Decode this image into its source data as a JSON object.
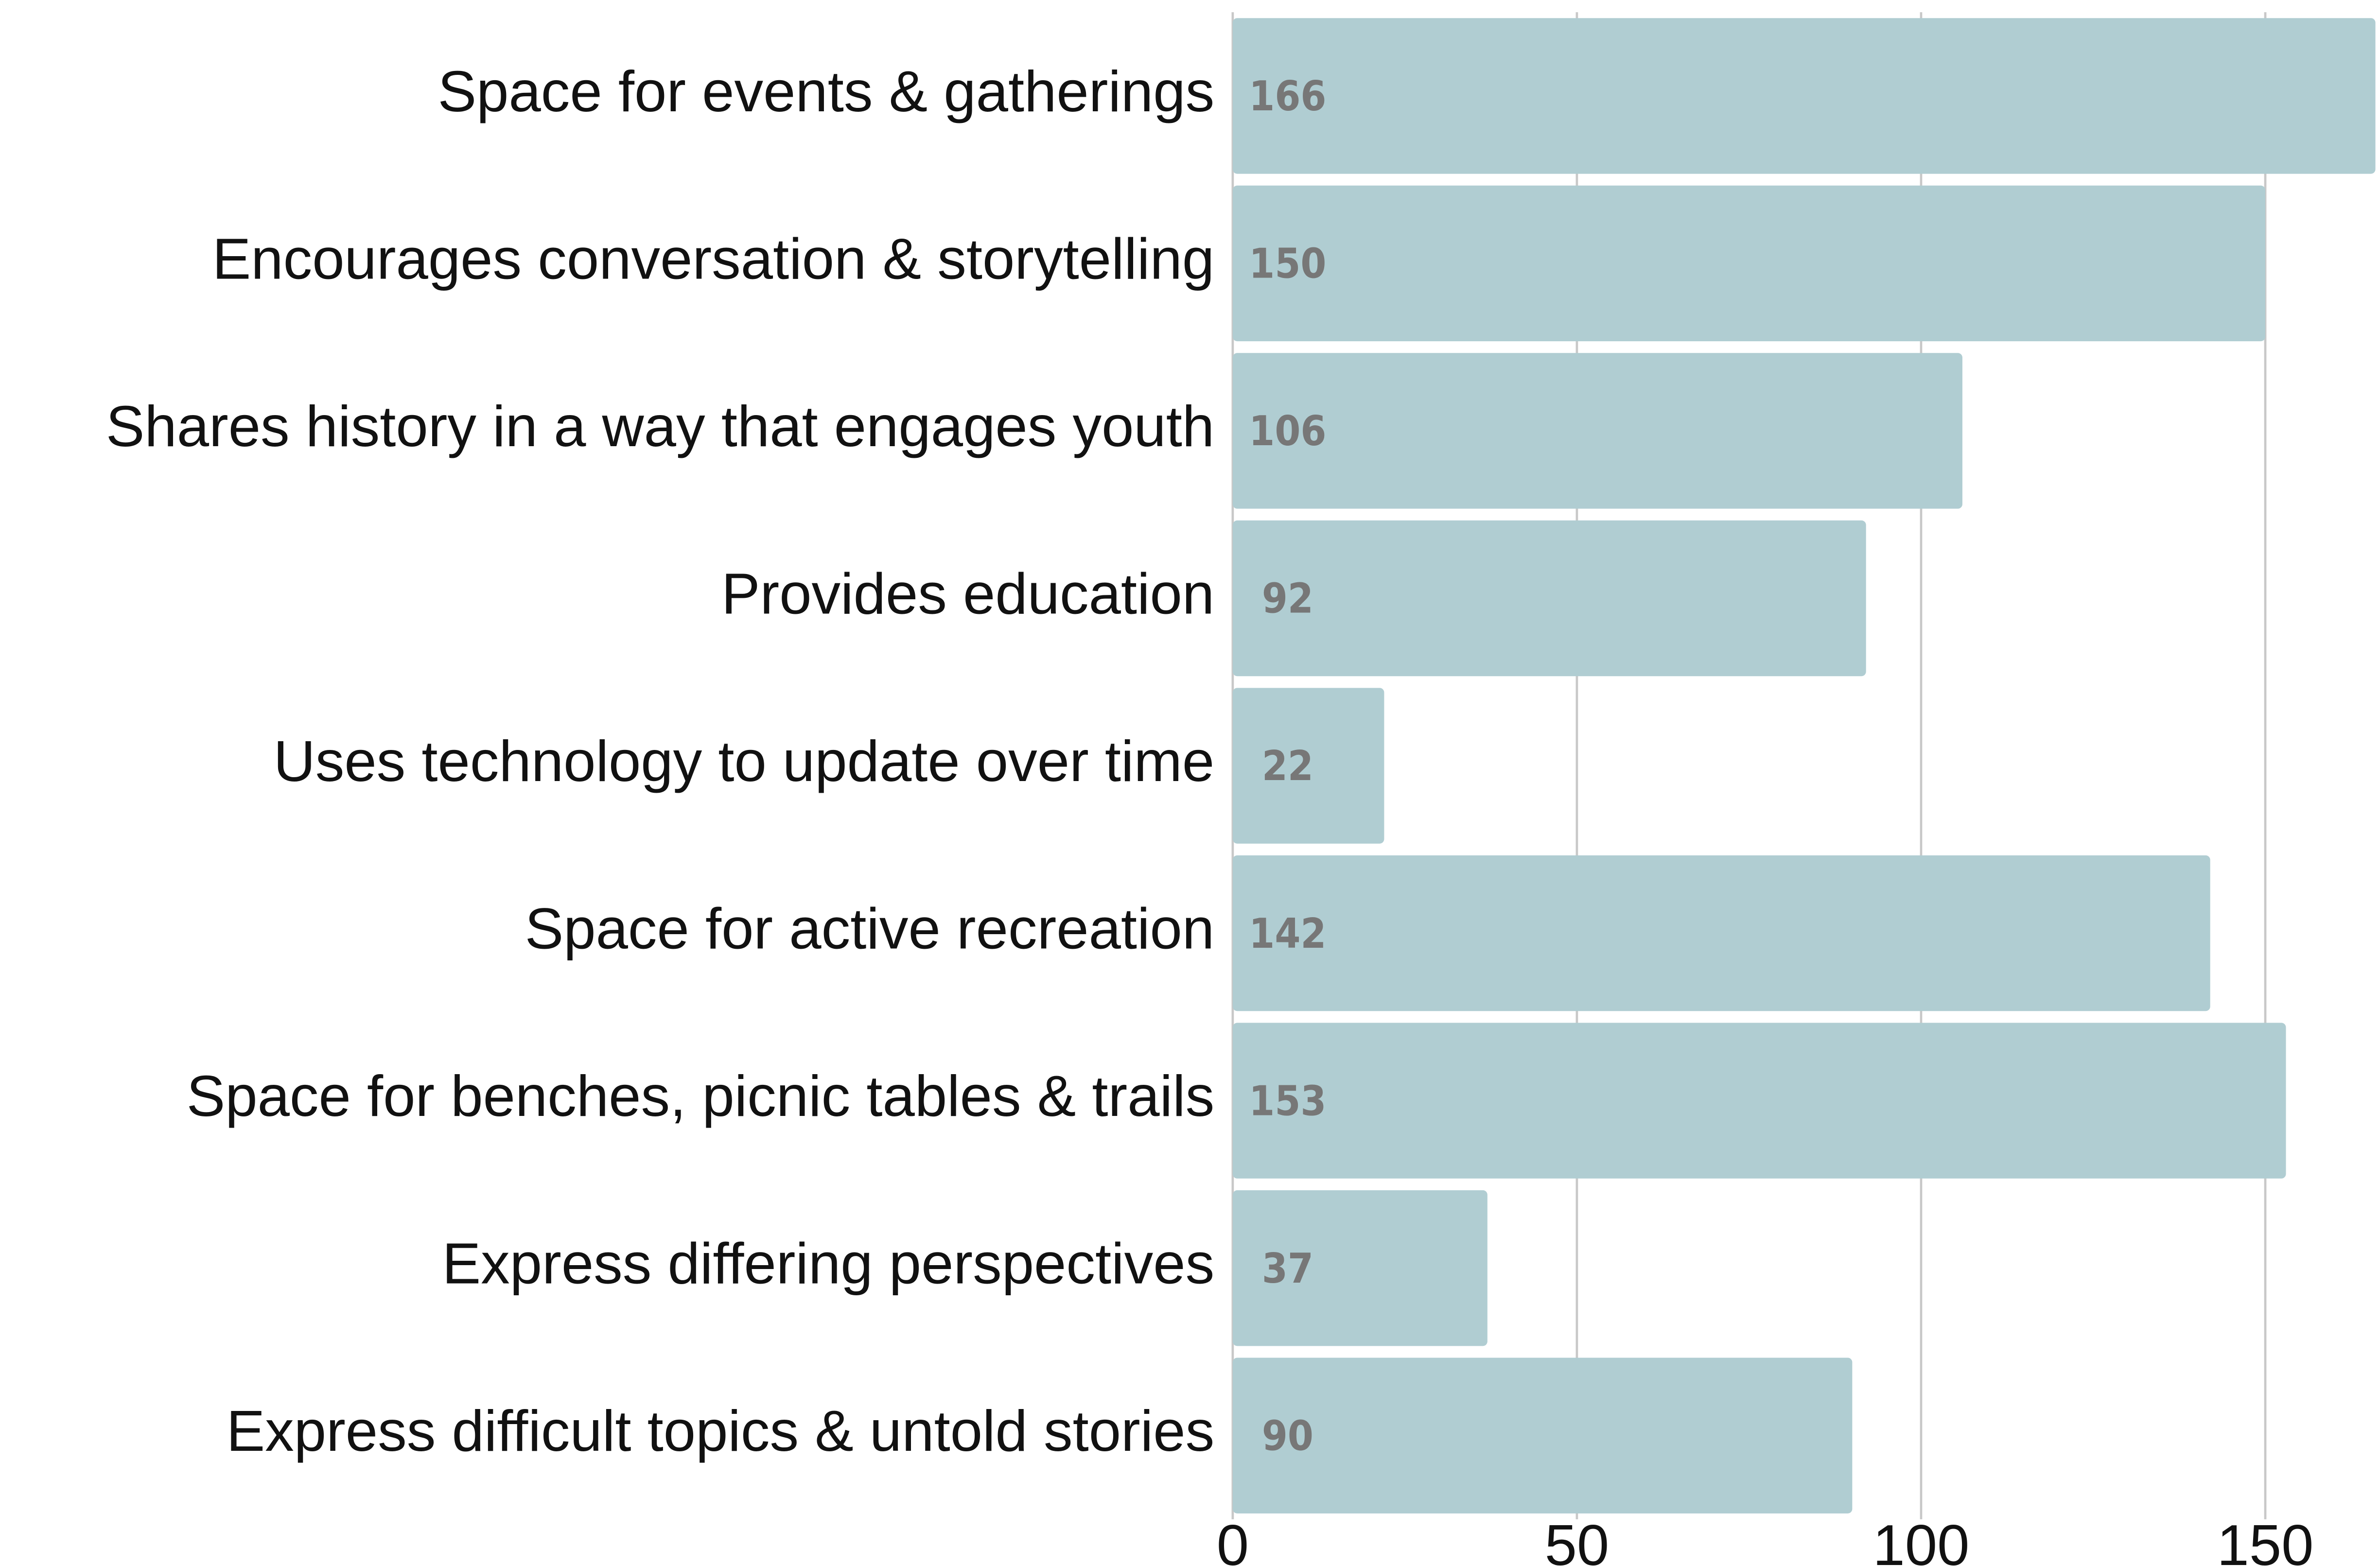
{
  "chart_data": {
    "type": "barh",
    "categories": [
      "Space for events & gatherings",
      "Encourages conversation & storytelling",
      "Shares history in a way that engages youth",
      "Provides education",
      "Uses technology to update over time",
      "Space for active recreation",
      "Space for benches, picnic tables & trails",
      "Express differing perspectives",
      "Express difficult topics & untold stories"
    ],
    "values": [
      166,
      150,
      106,
      92,
      22,
      142,
      153,
      37,
      90
    ],
    "color": "#b0cdd2",
    "xlim": [
      0,
      166
    ],
    "xticks": [
      0,
      50,
      100,
      150
    ],
    "grid": true
  }
}
